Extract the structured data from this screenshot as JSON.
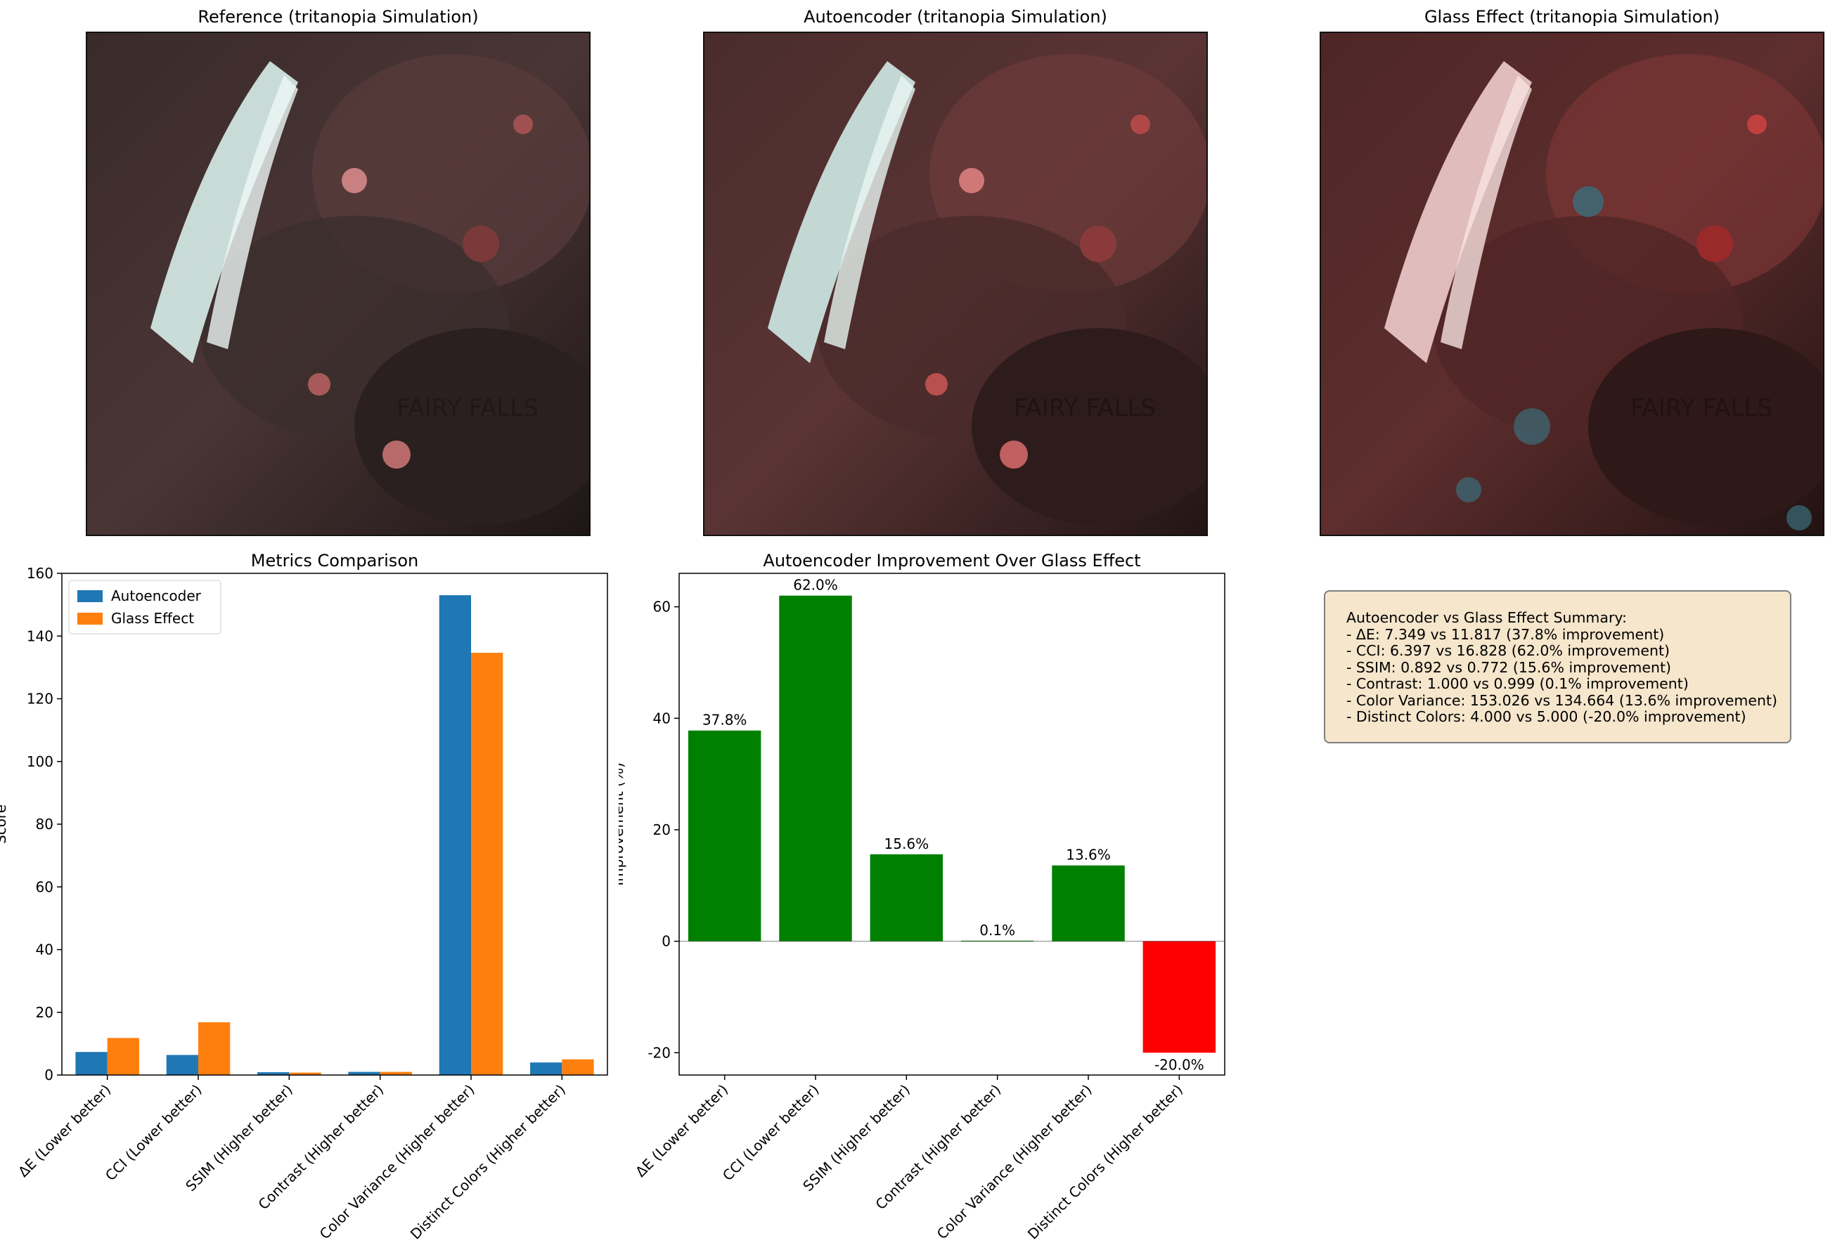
{
  "panels": {
    "reference_title": "Reference (tritanopia Simulation)",
    "autoencoder_title": "Autoencoder (tritanopia Simulation)",
    "glass_title": "Glass Effect (tritanopia Simulation)",
    "image_caption": "FAIRY FALLS"
  },
  "colors": {
    "autoencoder": "#1f77b4",
    "glass": "#ff7f0e",
    "positive": "#008000",
    "negative": "#ff0000",
    "summary_bg": "#f5e6cc"
  },
  "chart_data": [
    {
      "type": "bar",
      "title": "Metrics Comparison",
      "xlabel": "",
      "ylabel": "Score",
      "ylim": [
        0,
        160
      ],
      "yticks": [
        0,
        20,
        40,
        60,
        80,
        100,
        120,
        140,
        160
      ],
      "categories": [
        "ΔE (Lower better)",
        "CCI (Lower better)",
        "SSIM (Higher better)",
        "Contrast (Higher better)",
        "Color Variance (Higher better)",
        "Distinct Colors (Higher better)"
      ],
      "series": [
        {
          "name": "Autoencoder",
          "values": [
            7.349,
            6.397,
            0.892,
            1.0,
            153.026,
            4.0
          ]
        },
        {
          "name": "Glass Effect",
          "values": [
            11.817,
            16.828,
            0.772,
            0.999,
            134.664,
            5.0
          ]
        }
      ],
      "legend": "top-left"
    },
    {
      "type": "bar",
      "title": "Autoencoder Improvement Over Glass Effect",
      "xlabel": "",
      "ylabel": "Improvement (%)",
      "ylim": [
        -24,
        66
      ],
      "yticks": [
        -20,
        0,
        20,
        40,
        60
      ],
      "categories": [
        "ΔE (Lower better)",
        "CCI (Lower better)",
        "SSIM (Higher better)",
        "Contrast (Higher better)",
        "Color Variance (Higher better)",
        "Distinct Colors (Higher better)"
      ],
      "values": [
        37.8,
        62.0,
        15.6,
        0.1,
        13.6,
        -20.0
      ],
      "data_labels": [
        "37.8%",
        "62.0%",
        "15.6%",
        "0.1%",
        "13.6%",
        "-20.0%"
      ]
    }
  ],
  "summary": {
    "heading": "Autoencoder vs Glass Effect Summary:",
    "lines": [
      "- ΔE: 7.349 vs 11.817 (37.8% improvement)",
      "- CCI: 6.397 vs 16.828 (62.0% improvement)",
      "- SSIM: 0.892 vs 0.772 (15.6% improvement)",
      "- Contrast: 1.000 vs 0.999 (0.1% improvement)",
      "- Color Variance: 153.026 vs 134.664 (13.6% improvement)",
      "- Distinct Colors: 4.000 vs 5.000 (-20.0% improvement)"
    ]
  }
}
